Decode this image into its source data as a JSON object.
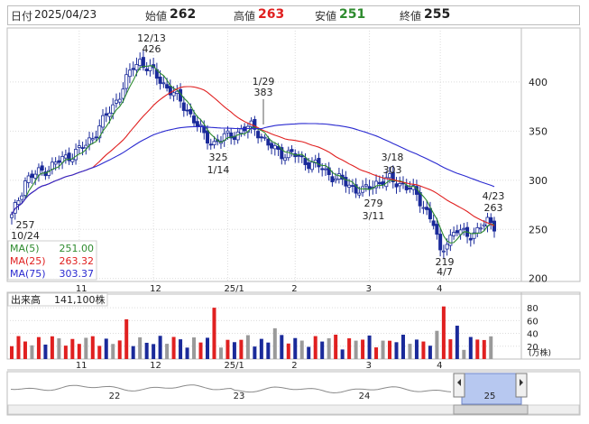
{
  "header": {
    "date_label": "日付",
    "date_value": "2025/04/23",
    "open_label": "始値",
    "open_value": "262",
    "high_label": "高値",
    "high_value": "263",
    "low_label": "安値",
    "low_value": "251",
    "close_label": "終値",
    "close_value": "255"
  },
  "colors": {
    "up": "#ffffff",
    "down": "#1a2a9a",
    "ma5": "#2e8b2e",
    "ma25": "#e02020",
    "ma75": "#2a2ad0",
    "vol_up": "#e02020",
    "vol_down": "#1a2a9a",
    "vol_flat": "#9a9a9a",
    "high_text": "#e02020",
    "low_text": "#2e8b2e"
  },
  "chart_data": {
    "type": "candlestick",
    "y_ticks": [
      "200",
      "250",
      "300",
      "350",
      "400"
    ],
    "ylim": [
      197,
      455
    ],
    "x_month_labels": [
      "11",
      "12",
      "25/1",
      "2",
      "3",
      "4"
    ],
    "annotations": [
      {
        "date": "12/13",
        "value": "426"
      },
      {
        "date": "1/29",
        "value": "383"
      },
      {
        "date": "1/14",
        "value": "325"
      },
      {
        "date": "3/18",
        "value": "303"
      },
      {
        "date": "3/11",
        "value": "279"
      },
      {
        "date": "4/23",
        "value": "263"
      },
      {
        "date": "4/7",
        "value": "219"
      },
      {
        "date": "10/24",
        "value": "257"
      }
    ],
    "legend": [
      {
        "name": "MA(5)",
        "value": "251.00"
      },
      {
        "name": "MA(25)",
        "value": "263.32"
      },
      {
        "name": "MA(75)",
        "value": "303.37"
      }
    ],
    "anchors": [
      {
        "day": 0,
        "close": 262
      },
      {
        "day": 4,
        "close": 300
      },
      {
        "day": 12,
        "close": 315
      },
      {
        "day": 22,
        "close": 335
      },
      {
        "day": 30,
        "close": 375
      },
      {
        "day": 36,
        "close": 415
      },
      {
        "day": 38,
        "close": 422
      },
      {
        "day": 41,
        "close": 412
      },
      {
        "day": 46,
        "close": 395
      },
      {
        "day": 52,
        "close": 372
      },
      {
        "day": 57,
        "close": 345
      },
      {
        "day": 60,
        "close": 338
      },
      {
        "day": 64,
        "close": 345
      },
      {
        "day": 68,
        "close": 350
      },
      {
        "day": 71,
        "close": 355
      },
      {
        "day": 73,
        "close": 350
      },
      {
        "day": 76,
        "close": 335
      },
      {
        "day": 80,
        "close": 328
      },
      {
        "day": 84,
        "close": 325
      },
      {
        "day": 88,
        "close": 318
      },
      {
        "day": 92,
        "close": 312
      },
      {
        "day": 96,
        "close": 302
      },
      {
        "day": 100,
        "close": 295
      },
      {
        "day": 104,
        "close": 288
      },
      {
        "day": 108,
        "close": 298
      },
      {
        "day": 112,
        "close": 300
      },
      {
        "day": 116,
        "close": 296
      },
      {
        "day": 119,
        "close": 288
      },
      {
        "day": 122,
        "close": 275
      },
      {
        "day": 125,
        "close": 255
      },
      {
        "day": 127,
        "close": 225
      },
      {
        "day": 129,
        "close": 240
      },
      {
        "day": 132,
        "close": 248
      },
      {
        "day": 135,
        "close": 245
      },
      {
        "day": 138,
        "close": 248
      },
      {
        "day": 141,
        "close": 258
      },
      {
        "day": 143,
        "close": 255
      }
    ],
    "day_count": 144,
    "volume": {
      "label": "出来高",
      "value": "141,100株",
      "y_ticks": [
        "20",
        "40",
        "60",
        "80"
      ],
      "unit": "(万株)",
      "ylim": [
        0,
        90
      ]
    },
    "navigator": {
      "labels": [
        "22",
        "23",
        "24",
        "25"
      ]
    }
  }
}
